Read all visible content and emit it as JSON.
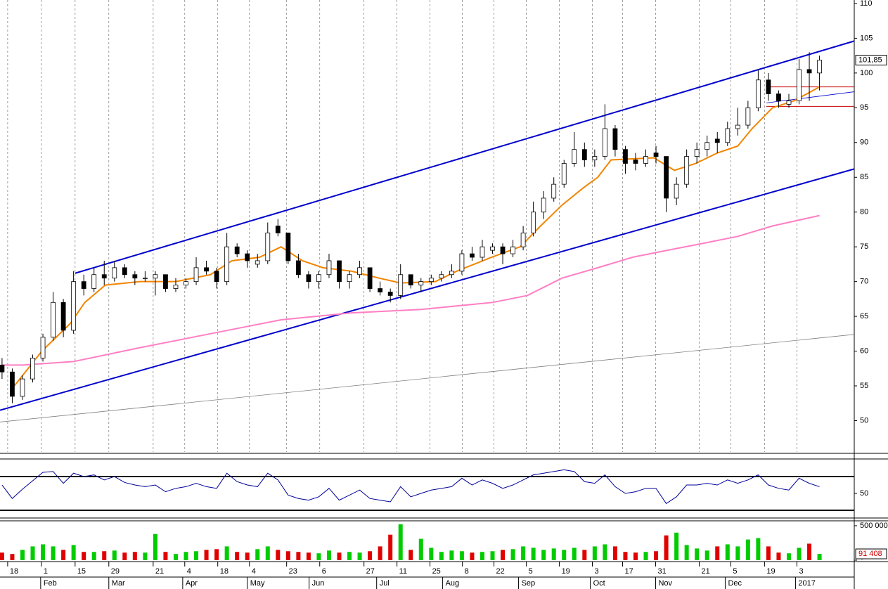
{
  "chart_data": {
    "type": "candlestick",
    "xlim": [
      -0.2,
      83.4
    ],
    "ylim": [
      45.5,
      110.5
    ],
    "yticks": [
      110,
      105,
      100,
      95,
      90,
      85,
      80,
      75,
      70,
      65,
      60,
      55,
      50
    ],
    "up_color": "#ffffff",
    "down_color": "#000000",
    "xticks": [
      {
        "value": 0.55,
        "label": "18"
      },
      {
        "value": 3.85,
        "label": "1"
      },
      {
        "value": 7.15,
        "label": "15"
      },
      {
        "value": 10.45,
        "label": "29"
      },
      {
        "value": 14.79,
        "label": "21"
      },
      {
        "value": 17.88,
        "label": "4"
      },
      {
        "value": 21.11,
        "label": "18"
      },
      {
        "value": 24.21,
        "label": "4"
      },
      {
        "value": 27.85,
        "label": "23"
      },
      {
        "value": 31.09,
        "label": "6"
      },
      {
        "value": 35.42,
        "label": "27"
      },
      {
        "value": 38.65,
        "label": "11"
      },
      {
        "value": 41.88,
        "label": "25"
      },
      {
        "value": 45.05,
        "label": "8"
      },
      {
        "value": 48.14,
        "label": "22"
      },
      {
        "value": 51.31,
        "label": "5"
      },
      {
        "value": 54.54,
        "label": "19"
      },
      {
        "value": 57.77,
        "label": "3"
      },
      {
        "value": 60.73,
        "label": "17"
      },
      {
        "value": 63.96,
        "label": "31"
      },
      {
        "value": 68.23,
        "label": "21"
      },
      {
        "value": 71.32,
        "label": "5"
      },
      {
        "value": 74.62,
        "label": "19"
      },
      {
        "value": 77.79,
        "label": "3"
      }
    ],
    "month_ticks": [
      {
        "value": 3.78,
        "label": "Feb"
      },
      {
        "value": 10.45,
        "label": "Mar"
      },
      {
        "value": 17.68,
        "label": "Apr"
      },
      {
        "value": 24.0,
        "label": "May"
      },
      {
        "value": 30.05,
        "label": "Jun"
      },
      {
        "value": 36.66,
        "label": "Jul"
      },
      {
        "value": 43.12,
        "label": "Aug"
      },
      {
        "value": 50.55,
        "label": "Sep"
      },
      {
        "value": 57.57,
        "label": "Oct"
      },
      {
        "value": 63.96,
        "label": "Nov"
      },
      {
        "value": 70.77,
        "label": "Dec"
      },
      {
        "value": 77.65,
        "label": "2017"
      }
    ],
    "ohlc": [
      [
        58,
        59,
        56,
        57
      ],
      [
        57,
        57.5,
        52.5,
        53.5
      ],
      [
        53.5,
        56.5,
        53,
        56
      ],
      [
        56,
        59.5,
        55.5,
        59
      ],
      [
        59,
        62.5,
        58.5,
        62
      ],
      [
        62,
        68.5,
        61.5,
        67
      ],
      [
        67,
        67.5,
        62,
        63
      ],
      [
        63,
        71.5,
        62.5,
        70
      ],
      [
        70,
        71,
        68,
        69
      ],
      [
        69,
        72,
        68.5,
        71
      ],
      [
        71,
        73,
        69.5,
        70.5
      ],
      [
        70.5,
        73,
        70,
        72
      ],
      [
        72,
        72.5,
        70.5,
        71
      ],
      [
        71,
        71.5,
        69.5,
        70.5
      ],
      [
        70.5,
        71.5,
        70,
        70.5
      ],
      [
        70.5,
        71.5,
        68,
        71
      ],
      [
        71,
        71,
        68.5,
        69
      ],
      [
        69,
        70.5,
        68.5,
        69.5
      ],
      [
        69.5,
        70.5,
        69,
        70
      ],
      [
        70,
        73.5,
        69.5,
        72
      ],
      [
        72,
        73,
        71,
        71.5
      ],
      [
        71.5,
        72,
        69,
        70
      ],
      [
        70,
        77,
        69.5,
        75
      ],
      [
        75,
        75.5,
        73.5,
        74
      ],
      [
        74,
        74.5,
        72,
        73
      ],
      [
        72.5,
        74,
        72,
        73
      ],
      [
        73,
        78.5,
        72.5,
        77
      ],
      [
        78,
        79,
        76.5,
        77
      ],
      [
        77,
        77,
        72.5,
        73
      ],
      [
        73,
        74,
        70.5,
        71
      ],
      [
        71,
        71.5,
        69,
        70
      ],
      [
        70,
        71.5,
        69,
        71
      ],
      [
        71,
        74,
        70.5,
        73
      ],
      [
        73,
        73,
        69,
        70
      ],
      [
        70,
        71.5,
        69,
        71
      ],
      [
        71,
        73,
        70.5,
        72
      ],
      [
        72,
        72,
        68.5,
        69
      ],
      [
        69,
        70,
        68,
        68.5
      ],
      [
        68.5,
        69,
        67,
        68
      ],
      [
        68,
        72.5,
        67.5,
        71
      ],
      [
        71,
        71,
        69,
        69.5
      ],
      [
        69.5,
        70.5,
        68.5,
        70
      ],
      [
        70,
        71,
        69.5,
        70.5
      ],
      [
        70.5,
        71.5,
        70,
        71
      ],
      [
        71,
        72.5,
        70.5,
        71.5
      ],
      [
        71.5,
        74.5,
        71,
        74
      ],
      [
        74,
        75,
        73,
        73.5
      ],
      [
        73.5,
        76,
        73,
        75
      ],
      [
        74.5,
        75.5,
        74,
        75
      ],
      [
        75,
        75.5,
        72.5,
        74
      ],
      [
        74,
        76,
        73.5,
        75
      ],
      [
        75,
        78,
        74.5,
        77
      ],
      [
        77,
        81.5,
        76.5,
        80
      ],
      [
        80,
        83,
        79,
        82
      ],
      [
        82,
        85,
        81.5,
        84
      ],
      [
        84,
        87.5,
        83.5,
        87
      ],
      [
        87,
        91.5,
        86.5,
        89
      ],
      [
        89,
        90,
        86.5,
        87.5
      ],
      [
        87.5,
        89,
        86.5,
        88
      ],
      [
        88,
        95.5,
        87.5,
        92
      ],
      [
        92,
        92.5,
        88,
        89
      ],
      [
        89,
        89.5,
        85.5,
        87
      ],
      [
        87.5,
        88.5,
        86,
        87
      ],
      [
        87,
        89,
        86.5,
        88
      ],
      [
        88.5,
        89.5,
        87,
        88
      ],
      [
        88,
        88,
        80,
        82
      ],
      [
        82,
        85,
        81,
        84
      ],
      [
        84,
        89,
        83.5,
        88
      ],
      [
        88,
        90,
        87,
        89
      ],
      [
        89,
        91,
        88,
        90
      ],
      [
        90.5,
        91.5,
        88.5,
        90
      ],
      [
        90,
        93,
        89.5,
        92
      ],
      [
        92,
        95,
        91,
        92.5
      ],
      [
        92.5,
        96,
        92,
        95
      ],
      [
        95,
        100.5,
        94.5,
        99
      ],
      [
        99,
        100,
        96,
        97
      ],
      [
        97,
        97.5,
        95,
        96
      ],
      [
        95.5,
        97,
        95,
        96
      ],
      [
        96,
        102,
        95.5,
        100.5
      ],
      [
        100.5,
        103,
        96,
        100
      ],
      [
        100,
        102.5,
        97.5,
        101.85
      ]
    ],
    "series": [
      {
        "color": "#f28500",
        "x": [
          1.2,
          3.9,
          6.7,
          8.1,
          10.1,
          13.5,
          17,
          20.4,
          22.5,
          25.2,
          27.3,
          29.4,
          31.4,
          34.2,
          36.9,
          39,
          42.4,
          44.5,
          47.9,
          50.7,
          52.7,
          54.8,
          56.9,
          58.3,
          59.6,
          63.8,
          65.8,
          67.9,
          70,
          72,
          73.4,
          75.4,
          77.5,
          80
        ],
        "values": [
          55,
          60,
          64,
          67,
          69.5,
          70,
          70,
          71,
          73,
          73.5,
          75,
          73,
          72,
          71.5,
          70.5,
          69.8,
          70,
          71.5,
          73.5,
          75,
          78,
          81,
          83.5,
          85,
          87.5,
          87.8,
          86,
          87,
          88.5,
          89.5,
          92,
          95,
          96,
          98
        ]
      },
      {
        "color": "#ff7fc4",
        "x": [
          0,
          2,
          7,
          13.5,
          20.4,
          27.3,
          34.2,
          41,
          48,
          51.4,
          54.8,
          58.3,
          61.7,
          65.1,
          68.6,
          72,
          75.4,
          80
        ],
        "values": [
          58,
          58,
          58.5,
          60.5,
          62.5,
          64.5,
          65.5,
          66,
          67,
          68,
          70.5,
          72,
          73.5,
          74.5,
          75.5,
          76.5,
          78,
          79.5
        ]
      }
    ],
    "trendlines": [
      {
        "color": "#0000cc",
        "width": 2,
        "x": [
          7.15,
          83.4
        ],
        "values": [
          71.2,
          104.6
        ]
      },
      {
        "color": "#0000cc",
        "width": 2,
        "x": [
          -0.2,
          83.4
        ],
        "values": [
          51.5,
          86.2
        ]
      },
      {
        "color": "#808080",
        "width": 0.8,
        "x": [
          -0.2,
          83.4
        ],
        "values": [
          49.8,
          62.4
        ]
      },
      {
        "color": "#0000cc",
        "width": 0.8,
        "x": [
          74.8,
          83.4
        ],
        "values": [
          95.7,
          97.3
        ]
      },
      {
        "color": "#cc0000",
        "width": 1,
        "x": [
          74.8,
          83.4
        ],
        "values": [
          98,
          98
        ]
      },
      {
        "color": "#cc0000",
        "width": 1,
        "x": [
          74.8,
          83.4
        ],
        "values": [
          95.2,
          95.2
        ]
      }
    ],
    "last_label": {
      "value": 101.85,
      "label": "101,85"
    },
    "rsi": {
      "ylim": [
        22.5,
        89.2
      ],
      "yticks": [
        50
      ],
      "levels": [
        70,
        30
      ],
      "color": "#000099",
      "values": [
        60,
        44,
        55,
        65,
        75,
        76,
        62,
        74,
        70,
        72,
        66,
        70,
        63,
        60,
        58,
        60,
        52,
        56,
        58,
        62,
        58,
        56,
        74,
        64,
        60,
        58,
        74,
        66,
        48,
        44,
        42,
        46,
        56,
        42,
        48,
        54,
        44,
        42,
        40,
        58,
        46,
        50,
        54,
        56,
        58,
        68,
        60,
        66,
        62,
        56,
        60,
        66,
        72,
        74,
        76,
        78,
        76,
        64,
        62,
        72,
        58,
        50,
        52,
        56,
        56,
        38,
        46,
        60,
        60,
        62,
        60,
        66,
        62,
        66,
        72,
        60,
        56,
        54,
        68,
        62,
        58
      ]
    },
    "volume": {
      "ylim": [
        0,
        561000
      ],
      "yticks": [
        {
          "value": 500000,
          "label": "500 000"
        },
        0
      ],
      "up_color": "#00cc00",
      "down_color": "#e00000",
      "values": [
        110000,
        90000,
        150000,
        200000,
        230000,
        200000,
        150000,
        220000,
        120000,
        120000,
        130000,
        140000,
        110000,
        120000,
        110000,
        380000,
        120000,
        90000,
        120000,
        130000,
        150000,
        160000,
        200000,
        120000,
        110000,
        160000,
        200000,
        150000,
        130000,
        120000,
        110000,
        100000,
        140000,
        110000,
        120000,
        110000,
        130000,
        200000,
        370000,
        520000,
        150000,
        310000,
        180000,
        120000,
        140000,
        130000,
        110000,
        120000,
        130000,
        150000,
        160000,
        200000,
        180000,
        150000,
        170000,
        150000,
        180000,
        150000,
        200000,
        230000,
        200000,
        120000,
        110000,
        120000,
        130000,
        360000,
        400000,
        220000,
        170000,
        140000,
        200000,
        230000,
        200000,
        300000,
        320000,
        200000,
        110000,
        100000,
        180000,
        240000,
        91408
      ],
      "last_label": {
        "value": 91408,
        "label": "91 408"
      }
    }
  }
}
